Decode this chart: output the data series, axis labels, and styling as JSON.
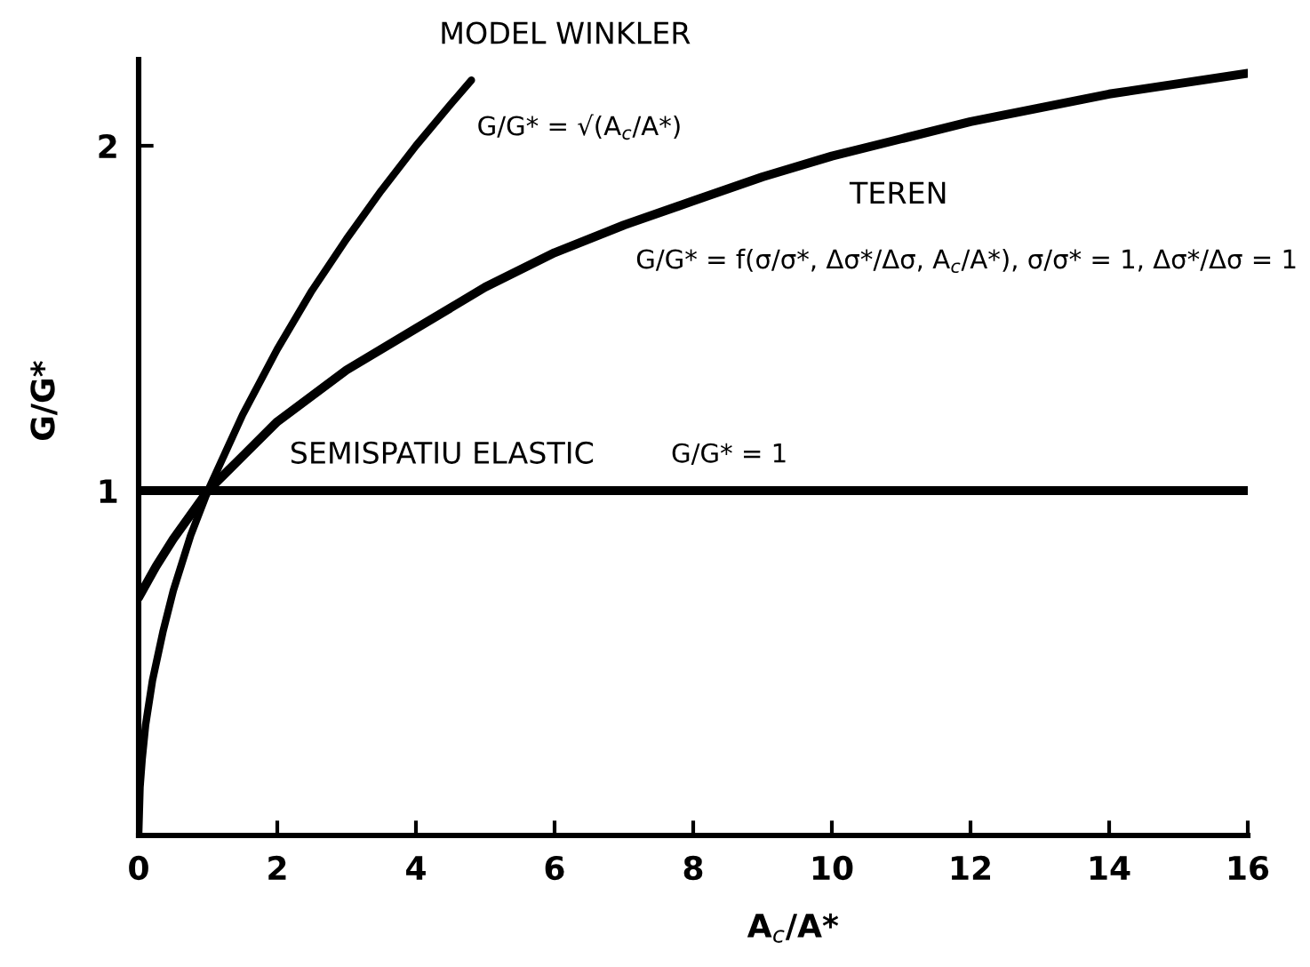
{
  "chart_data": {
    "type": "line",
    "xlabel": "A$_{c}$/A*",
    "ylabel": "G/G*",
    "xlim": [
      0,
      16
    ],
    "ylim": [
      0,
      2.25
    ],
    "xticks": [
      0,
      2,
      4,
      6,
      8,
      10,
      12,
      14,
      16
    ],
    "yticks": [
      1,
      2
    ],
    "line_style": "solid",
    "series": [
      {
        "name": "MODEL WINKLER",
        "color": "#000000",
        "x": [
          0,
          0.02,
          0.05,
          0.1,
          0.2,
          0.35,
          0.5,
          0.75,
          1,
          1.5,
          2,
          2.5,
          3,
          3.5,
          4,
          4.5,
          4.8
        ],
        "values": [
          0,
          0.14,
          0.22,
          0.32,
          0.45,
          0.59,
          0.71,
          0.87,
          1,
          1.22,
          1.41,
          1.58,
          1.73,
          1.87,
          2,
          2.12,
          2.19
        ]
      },
      {
        "name": "TEREN",
        "color": "#000000",
        "x": [
          0,
          0.25,
          0.5,
          1,
          1.5,
          2,
          3,
          4,
          5,
          6,
          7,
          8,
          9,
          10,
          11,
          12,
          13,
          14,
          15,
          16
        ],
        "values": [
          0.69,
          0.78,
          0.86,
          1,
          1.1,
          1.2,
          1.35,
          1.47,
          1.59,
          1.69,
          1.77,
          1.84,
          1.91,
          1.97,
          2.02,
          2.07,
          2.11,
          2.15,
          2.18,
          2.21
        ]
      },
      {
        "name": "SEMISPATIU ELASTIC",
        "color": "#000000",
        "x": [
          0,
          16
        ],
        "values": [
          1,
          1
        ]
      }
    ],
    "annotations": [
      "G/G* = √(A$_{c}$/A*)",
      "G/G* = f(σ/σ*, Δσ*/Δσ, A$_{c}$/A*), σ/σ* = 1, Δσ*/Δσ = 1",
      "G/G* = 1"
    ]
  }
}
